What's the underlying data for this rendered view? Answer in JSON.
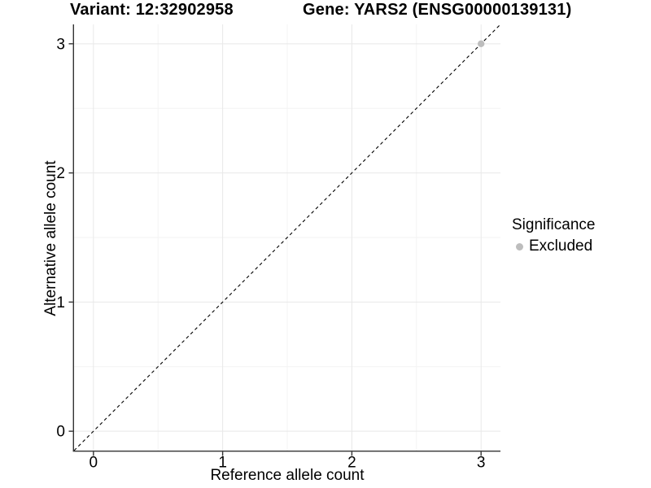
{
  "header": {
    "variant_title": "Variant: 12:32902958",
    "gene_title": "Gene: YARS2 (ENSG00000139131)"
  },
  "chart_data": {
    "type": "scatter",
    "xlabel": "Reference allele count",
    "ylabel": "Alternative allele count",
    "xlim": [
      -0.15,
      3.15
    ],
    "ylim": [
      -0.15,
      3.15
    ],
    "xticks": [
      0,
      1,
      2,
      3
    ],
    "yticks": [
      0,
      1,
      2,
      3
    ],
    "minor_ticks": [
      0.5,
      1.5,
      2.5
    ],
    "grid": "major and minor gridlines, white panel, axis lines left and bottom only",
    "points": [
      {
        "x": 3,
        "y": 3,
        "series": "Excluded"
      }
    ],
    "identity_line": {
      "style": "dashed",
      "x1": -0.15,
      "y1": -0.15,
      "x2": 3.15,
      "y2": 3.15,
      "color": "#000000"
    },
    "legend": {
      "position": "right",
      "title": "Significance",
      "items": [
        {
          "label": "Excluded",
          "color": "#bdbdbd"
        }
      ]
    },
    "colors": {
      "major_grid": "#e8e8e8",
      "minor_grid": "#f3f3f3",
      "axis_line": "#333333",
      "tick_text": "#000000",
      "point": "#bdbdbd"
    }
  }
}
